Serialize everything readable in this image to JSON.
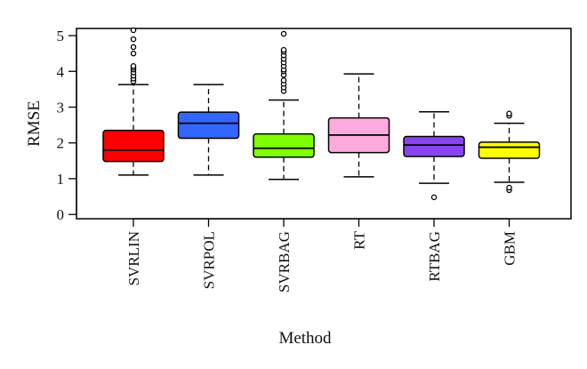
{
  "chart_data": {
    "type": "boxplot",
    "title": "",
    "xlabel": "Method",
    "ylabel": "RMSE",
    "ylim": [
      -0.12,
      5.2
    ],
    "yticks": [
      0,
      1,
      2,
      3,
      4,
      5
    ],
    "ytick_labels": [
      "0",
      "1",
      "2",
      "3",
      "4",
      "5"
    ],
    "grid": false,
    "categories": [
      "SVRLIN",
      "SVRPOL",
      "SVRBAG",
      "RT",
      "RTBAG",
      "GBM"
    ],
    "series": [
      {
        "name": "SVRLIN",
        "color": "#ff0000",
        "whisker_low": 1.1,
        "q1": 1.48,
        "median": 1.8,
        "q3": 2.35,
        "whisker_high": 3.63,
        "outliers": [
          3.72,
          3.8,
          3.88,
          3.97,
          4.05,
          4.1,
          4.15,
          4.5,
          4.68,
          4.9,
          5.15
        ]
      },
      {
        "name": "SVRPOL",
        "color": "#3366ff",
        "whisker_low": 1.1,
        "q1": 2.13,
        "median": 2.55,
        "q3": 2.86,
        "whisker_high": 3.63,
        "outliers": []
      },
      {
        "name": "SVRBAG",
        "color": "#80ff00",
        "whisker_low": 0.98,
        "q1": 1.6,
        "median": 1.85,
        "q3": 2.25,
        "whisker_high": 3.2,
        "outliers": [
          3.45,
          3.55,
          3.65,
          3.75,
          3.9,
          4.0,
          4.05,
          4.15,
          4.25,
          4.35,
          4.45,
          4.55,
          4.6,
          5.05
        ]
      },
      {
        "name": "RT",
        "color": "#ffaadd",
        "whisker_low": 1.05,
        "q1": 1.73,
        "median": 2.22,
        "q3": 2.7,
        "whisker_high": 3.93,
        "outliers": []
      },
      {
        "name": "RTBAG",
        "color": "#8844ee",
        "whisker_low": 0.87,
        "q1": 1.62,
        "median": 1.94,
        "q3": 2.18,
        "whisker_high": 2.87,
        "outliers": [
          0.48
        ]
      },
      {
        "name": "GBM",
        "color": "#ffff00",
        "whisker_low": 0.9,
        "q1": 1.57,
        "median": 1.88,
        "q3": 2.02,
        "whisker_high": 2.55,
        "outliers": [
          0.68,
          0.75,
          2.76,
          2.82
        ]
      }
    ]
  }
}
